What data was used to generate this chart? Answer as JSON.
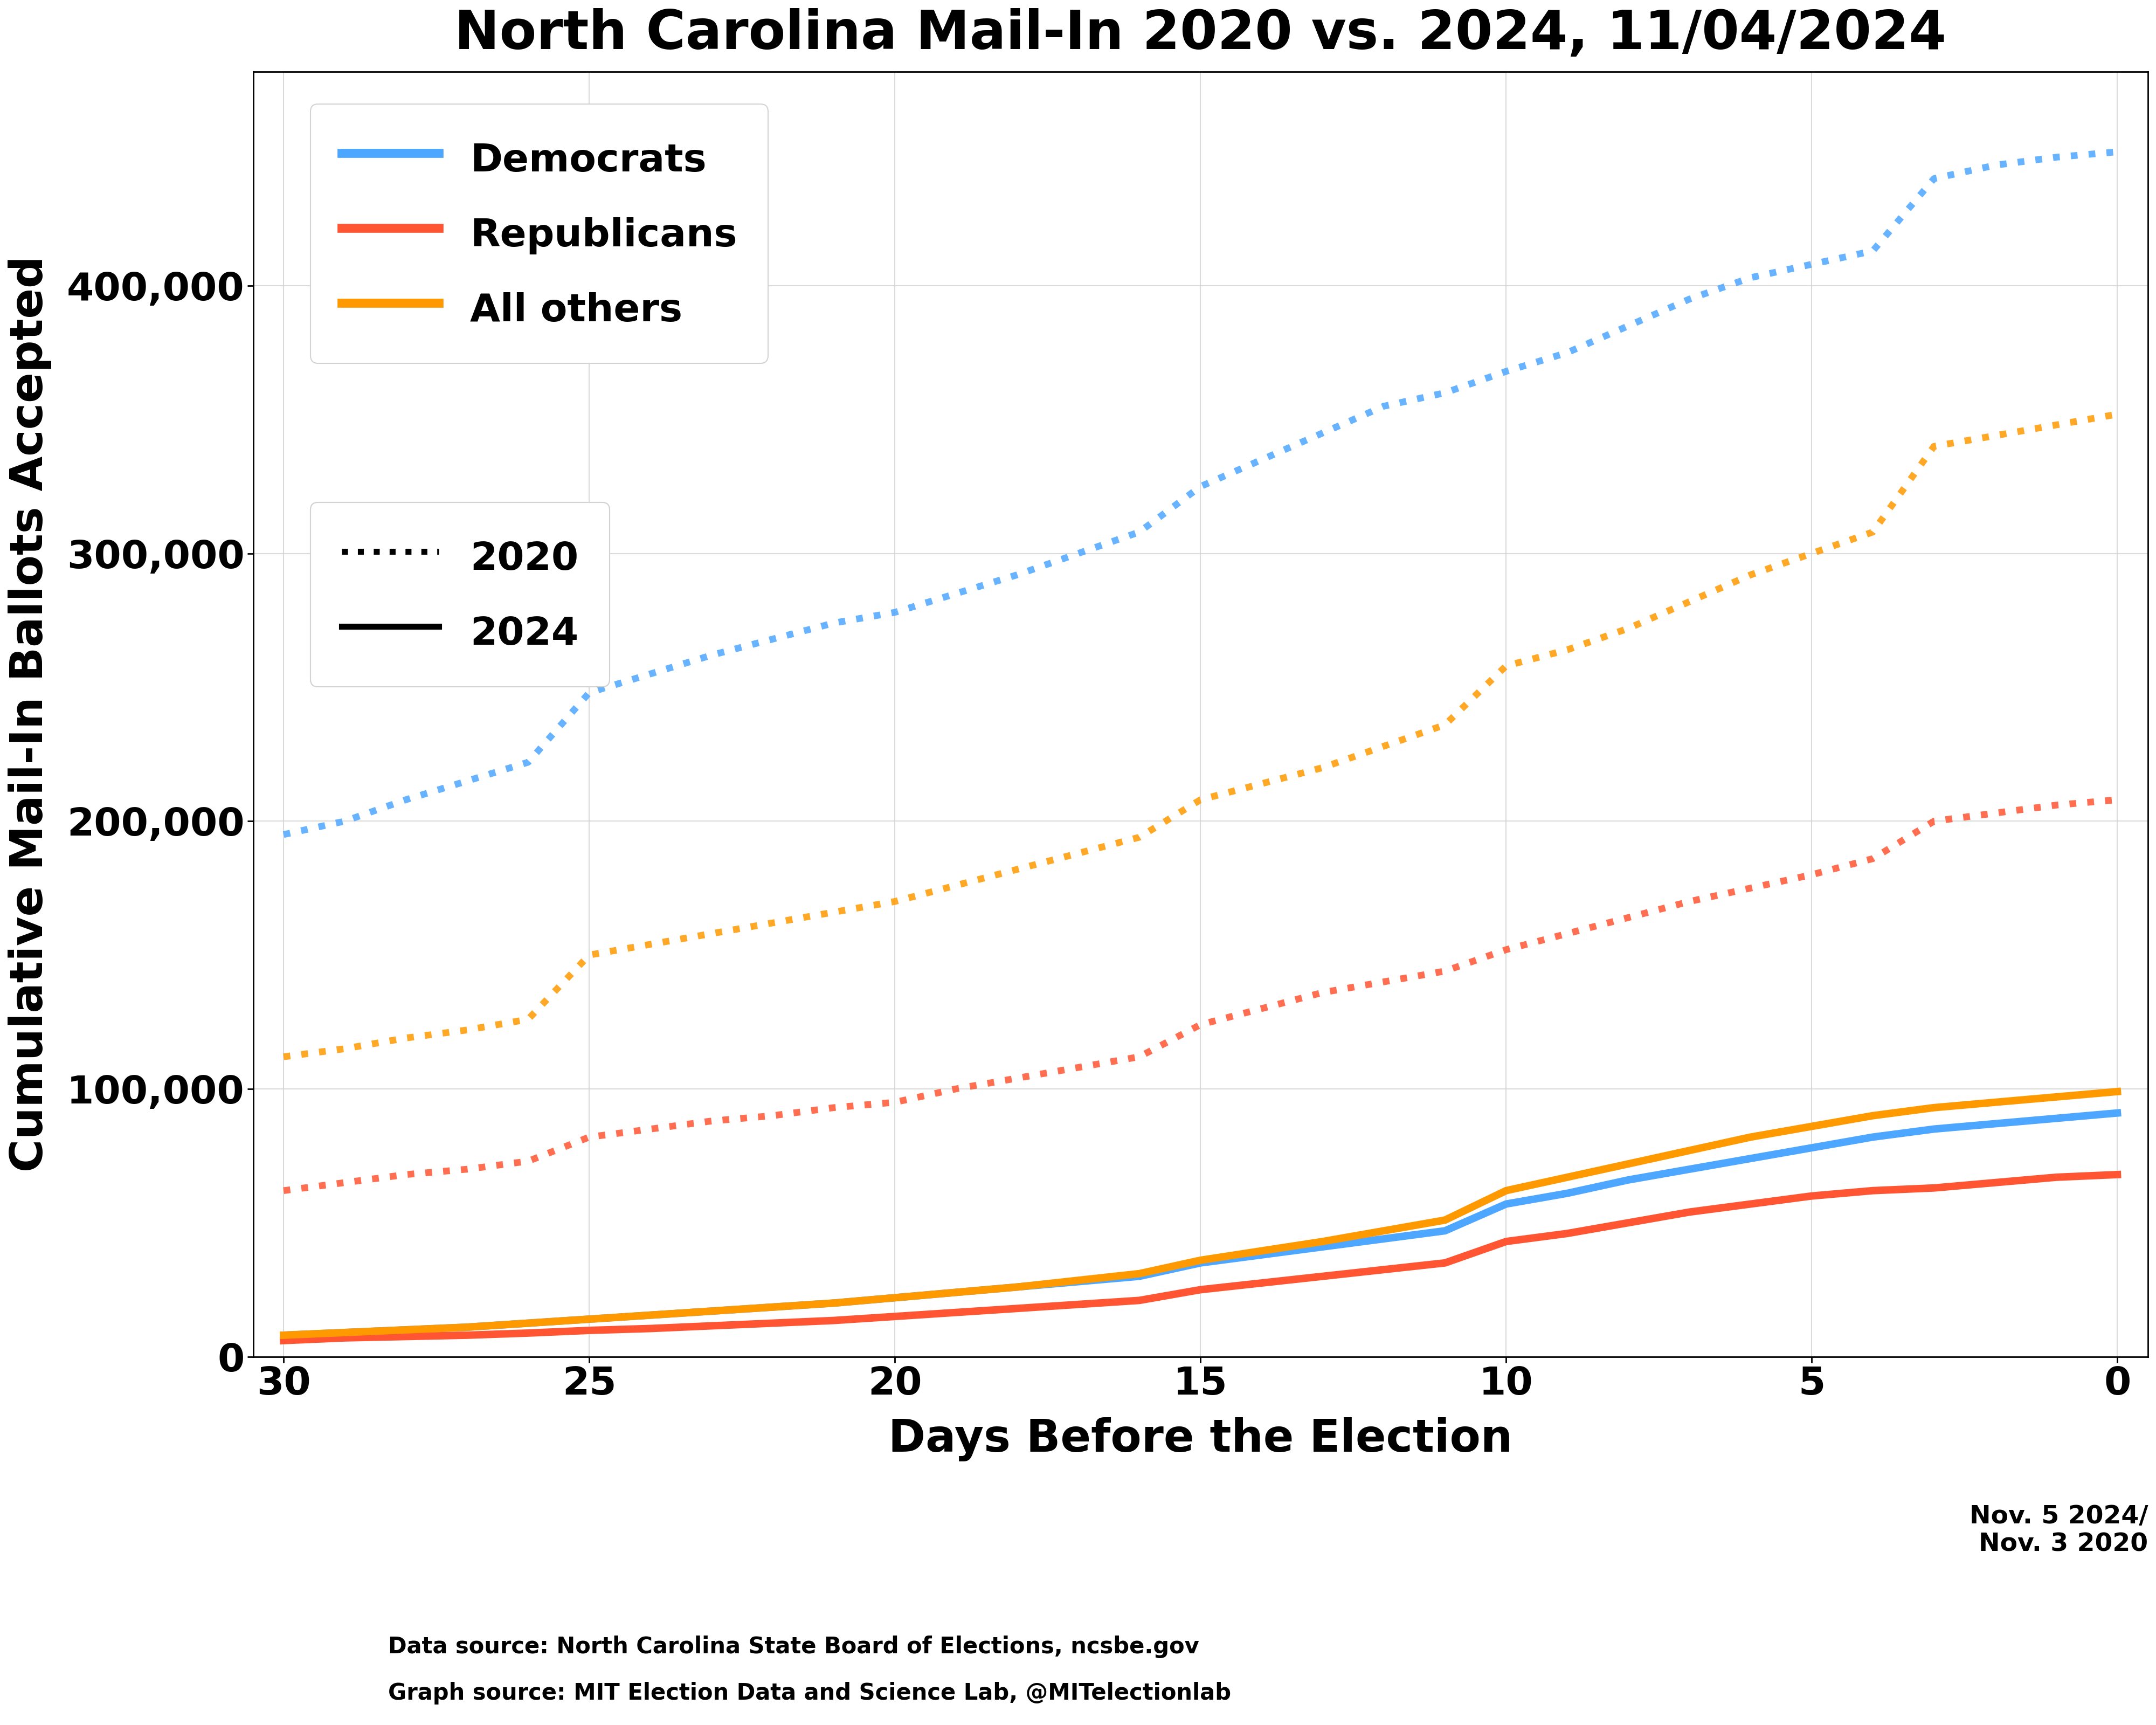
{
  "title": "North Carolina Mail-In 2020 vs. 2024, 11/04/2024",
  "xlabel": "Days Before the Election",
  "ylabel": "Cumulative Mail-In Ballots Accepted",
  "footnote_date": "Nov. 5 2024/\nNov. 3 2020",
  "source_line1": "Data source: North Carolina State Board of Elections, ncsbe.gov",
  "source_line2": "Graph source: MIT Election Data and Science Lab, @MITelectionlab",
  "colors": {
    "dem": "#4da6ff",
    "rep": "#ff5533",
    "other": "#ff9900"
  },
  "days_2020": [
    30,
    29,
    28,
    27,
    26,
    25,
    24,
    23,
    22,
    21,
    20,
    19,
    18,
    17,
    16,
    15,
    14,
    13,
    12,
    11,
    10,
    9,
    8,
    7,
    6,
    5,
    4,
    3,
    2,
    1,
    0
  ],
  "dem_2020": [
    195000,
    200000,
    208000,
    215000,
    222000,
    248000,
    255000,
    262000,
    268000,
    274000,
    278000,
    285000,
    292000,
    300000,
    308000,
    325000,
    335000,
    345000,
    355000,
    360000,
    368000,
    375000,
    385000,
    395000,
    403000,
    408000,
    413000,
    440000,
    445000,
    448000,
    450000
  ],
  "rep_2020": [
    62000,
    65000,
    68000,
    70000,
    73000,
    82000,
    85000,
    88000,
    90000,
    93000,
    95000,
    100000,
    104000,
    108000,
    112000,
    124000,
    130000,
    136000,
    140000,
    144000,
    152000,
    158000,
    164000,
    170000,
    175000,
    180000,
    186000,
    200000,
    203000,
    206000,
    208000
  ],
  "other_2020": [
    112000,
    115000,
    119000,
    122000,
    126000,
    150000,
    154000,
    158000,
    162000,
    166000,
    170000,
    176000,
    182000,
    188000,
    194000,
    208000,
    214000,
    220000,
    228000,
    236000,
    258000,
    264000,
    272000,
    282000,
    292000,
    300000,
    308000,
    340000,
    344000,
    348000,
    352000
  ],
  "days_2024": [
    30,
    29,
    28,
    27,
    26,
    25,
    24,
    23,
    22,
    21,
    20,
    19,
    18,
    17,
    16,
    15,
    14,
    13,
    12,
    11,
    10,
    9,
    8,
    7,
    6,
    5,
    4,
    3,
    2,
    1,
    0
  ],
  "dem_2024": [
    8000,
    9000,
    10000,
    11000,
    12500,
    14000,
    15500,
    17000,
    18500,
    20000,
    22000,
    24000,
    26000,
    28000,
    30000,
    35000,
    38000,
    41000,
    44000,
    47000,
    57000,
    61000,
    66000,
    70000,
    74000,
    78000,
    82000,
    85000,
    87000,
    89000,
    91000
  ],
  "rep_2024": [
    6000,
    7000,
    7500,
    8000,
    8800,
    9800,
    10500,
    11500,
    12500,
    13500,
    15000,
    16500,
    18000,
    19500,
    21000,
    25000,
    27500,
    30000,
    32500,
    35000,
    43000,
    46000,
    50000,
    54000,
    57000,
    60000,
    62000,
    63000,
    65000,
    67000,
    68000
  ],
  "other_2024": [
    8000,
    9000,
    10000,
    11000,
    12500,
    14000,
    15500,
    17000,
    18500,
    20000,
    22000,
    24000,
    26000,
    28500,
    31000,
    36000,
    39500,
    43000,
    47000,
    51000,
    62000,
    67000,
    72000,
    77000,
    82000,
    86000,
    90000,
    93000,
    95000,
    97000,
    99000
  ],
  "xlim": [
    30.5,
    -0.5
  ],
  "ylim": [
    0,
    480000
  ],
  "yticks": [
    0,
    100000,
    200000,
    300000,
    400000
  ],
  "xticks": [
    30,
    25,
    20,
    15,
    10,
    5,
    0
  ],
  "title_fontsize": 72,
  "label_fontsize": 60,
  "tick_fontsize": 52,
  "legend_fontsize": 52,
  "source_fontsize": 30,
  "date_fontsize": 34,
  "linewidth_solid": 10,
  "linewidth_dotted": 9,
  "dot_linewidth_legend": 10
}
